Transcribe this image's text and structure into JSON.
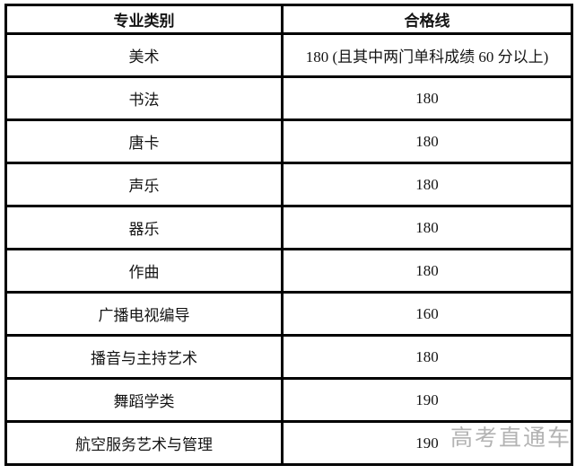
{
  "table": {
    "headers": {
      "category": "专业类别",
      "score": "合格线"
    },
    "rows": [
      {
        "category": "美术",
        "score": "180 (且其中两门单科成绩 60 分以上)"
      },
      {
        "category": "书法",
        "score": "180"
      },
      {
        "category": "唐卡",
        "score": "180"
      },
      {
        "category": "声乐",
        "score": "180"
      },
      {
        "category": "器乐",
        "score": "180"
      },
      {
        "category": "作曲",
        "score": "180"
      },
      {
        "category": "广播电视编导",
        "score": "160"
      },
      {
        "category": "播音与主持艺术",
        "score": "180"
      },
      {
        "category": "舞蹈学类",
        "score": "190"
      },
      {
        "category": "航空服务艺术与管理",
        "score": "190"
      }
    ]
  },
  "watermark": {
    "label": "高考直通车"
  },
  "colors": {
    "border": "#000000",
    "text": "#141414",
    "watermark": "#b3b3b3",
    "background": "#ffffff"
  }
}
